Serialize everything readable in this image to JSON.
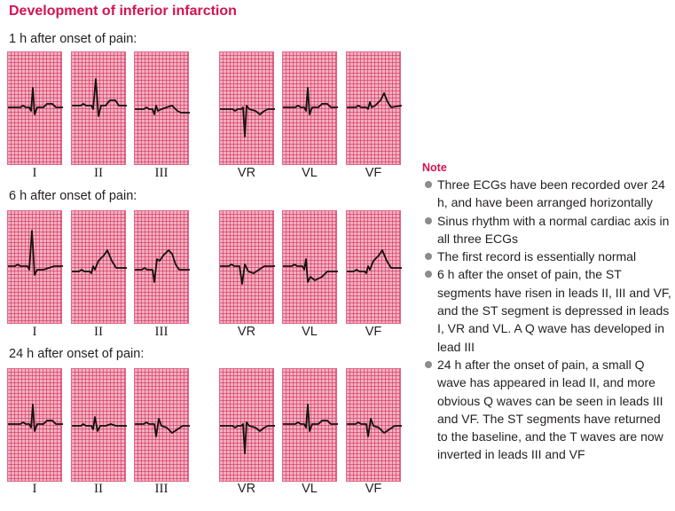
{
  "title": "Development of inferior infarction",
  "sections": [
    {
      "label": "1 h after onset of pain:",
      "leads": [
        "I",
        "II",
        "III",
        "VR",
        "VL",
        "VF"
      ],
      "trace_shapes": [
        "upright-small",
        "upright-tall",
        "biphasic-low",
        "inverted-deep",
        "upright-small",
        "upright-t"
      ]
    },
    {
      "label": "6 h after onset of pain:",
      "leads": [
        "I",
        "II",
        "III",
        "VR",
        "VL",
        "VF"
      ],
      "trace_shapes": [
        "upright-st-depressed",
        "st-elevated",
        "st-elevated-q",
        "inverted-st-depressed",
        "qrs-st-depressed",
        "st-elevated"
      ]
    },
    {
      "label": "24 h after onset of pain:",
      "leads": [
        "I",
        "II",
        "III",
        "VR",
        "VL",
        "VF"
      ],
      "trace_shapes": [
        "upright-small",
        "small-q-baseline",
        "q-wave-t-inverted",
        "inverted-deep",
        "upright-small",
        "q-wave-t-inverted"
      ]
    }
  ],
  "note": {
    "title": "Note",
    "items": [
      "Three ECGs have been recorded over 24 h, and have been arranged horizontally",
      "Sinus rhythm with a normal cardiac axis in all three ECGs",
      "The first record is essentially normal",
      "6 h after the onset of pain, the ST segments have risen in leads II, III and VF, and the ST segment is depressed in leads I, VR and VL. A Q wave has developed in lead III",
      "24 h after the onset of pain, a small Q wave has appeared in lead II, and more obvious Q waves can be seen in leads III and VF. The ST segments have returned to the baseline, and the T waves are now inverted in leads III and VF"
    ]
  },
  "colors": {
    "accent": "#d2144f",
    "grid_paper": "#f5aec0",
    "grid_line": "#c82850",
    "trace": "#111111",
    "bullet": "#8c8c8c"
  }
}
